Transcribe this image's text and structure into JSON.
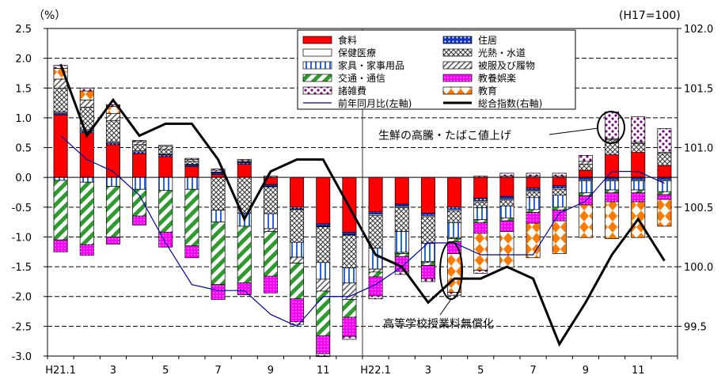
{
  "chart_data": {
    "type": "bar",
    "left_unit": "（%）",
    "right_unit": "(H17=100)",
    "y_left_ticks": [
      "2.5",
      "2.0",
      "1.5",
      "1.0",
      "0.5",
      "0.0",
      "-0.5",
      "-1.0",
      "-1.5",
      "-2.0",
      "-2.5",
      "-3.0"
    ],
    "y_left_lim": [
      -3.0,
      2.5
    ],
    "y_right_ticks": [
      "102.0",
      "101.5",
      "101.0",
      "100.5",
      "100.0",
      "99.5"
    ],
    "y_right_lim": [
      99.25,
      102.0
    ],
    "x_tick_labels": [
      "H21.1",
      "3",
      "5",
      "7",
      "9",
      "11",
      "H22.1",
      "3",
      "5",
      "7",
      "9",
      "11"
    ],
    "x_tick_months": [
      1,
      3,
      5,
      7,
      9,
      11,
      13,
      15,
      17,
      19,
      21,
      23
    ],
    "months": 24,
    "stack_order": [
      "food",
      "housing",
      "health",
      "utilities",
      "furniture",
      "clothing",
      "transport",
      "education_recreation",
      "education",
      "misc"
    ],
    "series": [
      {
        "key": "food",
        "name": "食料",
        "color": "#ff0000",
        "values": [
          1.05,
          0.75,
          0.55,
          0.4,
          0.35,
          0.18,
          0.05,
          0.22,
          -0.12,
          -0.5,
          -0.78,
          -0.92,
          -0.58,
          -0.45,
          -0.6,
          -0.5,
          -0.35,
          -0.32,
          -0.18,
          -0.14,
          0.12,
          0.38,
          0.42,
          0.2
        ]
      },
      {
        "key": "housing",
        "name": "住居",
        "color": "#0000cc",
        "values": [
          0.03,
          0.03,
          0.03,
          0.03,
          0.03,
          0.03,
          0.03,
          0.03,
          -0.03,
          -0.03,
          -0.04,
          -0.04,
          -0.04,
          -0.04,
          -0.04,
          -0.04,
          -0.04,
          -0.04,
          -0.04,
          -0.04,
          -0.04,
          -0.04,
          -0.04,
          -0.04
        ]
      },
      {
        "key": "health",
        "name": "保健医療",
        "color": "#ffffff",
        "values": [
          0.02,
          0.02,
          0.02,
          0.02,
          0.01,
          0.01,
          0.01,
          0.01,
          -0.01,
          -0.01,
          -0.01,
          -0.01,
          -0.02,
          -0.02,
          -0.02,
          -0.02,
          -0.02,
          -0.02,
          -0.02,
          -0.02,
          -0.02,
          -0.02,
          -0.02,
          -0.02
        ]
      },
      {
        "key": "utilities",
        "name": "光熱・水道",
        "color": "#ffffff",
        "values": [
          0.4,
          0.38,
          0.35,
          0.1,
          0.08,
          0.05,
          -0.55,
          -0.6,
          -0.45,
          -0.55,
          -0.6,
          -0.55,
          -0.55,
          -0.4,
          -0.45,
          -0.2,
          -0.1,
          -0.1,
          -0.1,
          -0.1,
          0.1,
          0.25,
          0.15,
          0.2
        ]
      },
      {
        "key": "furniture",
        "name": "家具・家事用品",
        "color": "#ffffff",
        "values": [
          -0.05,
          -0.08,
          -0.15,
          -0.2,
          -0.22,
          -0.2,
          -0.2,
          -0.22,
          -0.25,
          -0.25,
          -0.28,
          -0.25,
          -0.35,
          -0.35,
          -0.3,
          -0.25,
          -0.2,
          -0.2,
          -0.2,
          -0.2,
          -0.2,
          -0.15,
          -0.15,
          -0.18
        ]
      },
      {
        "key": "clothing",
        "name": "被服及び履物",
        "color": "#ffffff",
        "values": [
          0.15,
          0.12,
          0.12,
          0.05,
          0.05,
          0.03,
          0.03,
          0.02,
          -0.05,
          -0.1,
          -0.2,
          -0.28,
          -0.05,
          -0.02,
          -0.02,
          -0.02,
          0.02,
          0.02,
          0.02,
          0.02,
          0.05,
          0.02,
          0.02,
          0.02
        ]
      },
      {
        "key": "transport",
        "name": "交通・通信",
        "color": "#ffffff",
        "values": [
          -1.0,
          -1.05,
          -0.85,
          -0.45,
          -0.7,
          -0.95,
          -1.05,
          -0.95,
          -0.75,
          -0.6,
          -0.75,
          -0.3,
          -0.08,
          -0.05,
          -0.05,
          -0.05,
          -0.05,
          -0.05,
          -0.05,
          -0.05,
          -0.05,
          -0.05,
          -0.05,
          -0.05
        ]
      },
      {
        "key": "education_recreation",
        "name": "教養娯楽",
        "color": "#ff00ff",
        "values": [
          -0.2,
          -0.18,
          -0.12,
          -0.15,
          -0.25,
          -0.2,
          -0.25,
          -0.2,
          -0.28,
          -0.38,
          -0.3,
          -0.32,
          -0.32,
          -0.25,
          -0.22,
          -0.2,
          -0.18,
          -0.18,
          -0.18,
          -0.18,
          -0.15,
          -0.15,
          -0.15,
          -0.08
        ]
      },
      {
        "key": "education",
        "name": "教育",
        "color": "#ff8000",
        "values": [
          0.18,
          0.15,
          0.12,
          0,
          0,
          0,
          0,
          0,
          0,
          0,
          0,
          0,
          0,
          0,
          0,
          -0.65,
          -0.62,
          -0.6,
          -0.58,
          -0.55,
          -0.55,
          -0.62,
          -0.6,
          -0.45
        ]
      },
      {
        "key": "misc",
        "name": "諸雑費",
        "color": "#ffffff",
        "values": [
          0.05,
          0.05,
          0.03,
          0.02,
          0.02,
          0.02,
          0.02,
          0.02,
          0.02,
          -0.05,
          -0.05,
          -0.05,
          -0.05,
          -0.05,
          -0.05,
          -0.05,
          -0.05,
          0.05,
          0.05,
          0.05,
          0.1,
          0.45,
          0.43,
          0.4
        ]
      }
    ],
    "line_yoy": {
      "name": "前年同月比(左軸)",
      "color": "#0000aa",
      "values": [
        0.7,
        0.3,
        0.1,
        -0.3,
        -1.1,
        -1.8,
        -1.9,
        -1.9,
        -2.3,
        -2.5,
        -2.0,
        -2.0,
        -1.8,
        -1.5,
        -1.1,
        -1.1,
        -1.3,
        -1.3,
        -1.3,
        -0.6,
        -0.4,
        0.1,
        0.1,
        -0.1
      ]
    },
    "line_index": {
      "name": "総合指数(右軸)",
      "color": "#000000",
      "values": [
        101.7,
        101.1,
        101.4,
        101.1,
        101.2,
        101.2,
        100.9,
        100.4,
        100.8,
        100.9,
        100.9,
        100.5,
        100.1,
        100.0,
        99.7,
        99.9,
        99.9,
        100.0,
        99.9,
        99.35,
        99.7,
        100.1,
        100.4,
        100.05
      ]
    },
    "annotations": {
      "surge": "生鮮の高騰・たばこ値上げ",
      "tuition": "高等学校授業料無償化"
    }
  }
}
